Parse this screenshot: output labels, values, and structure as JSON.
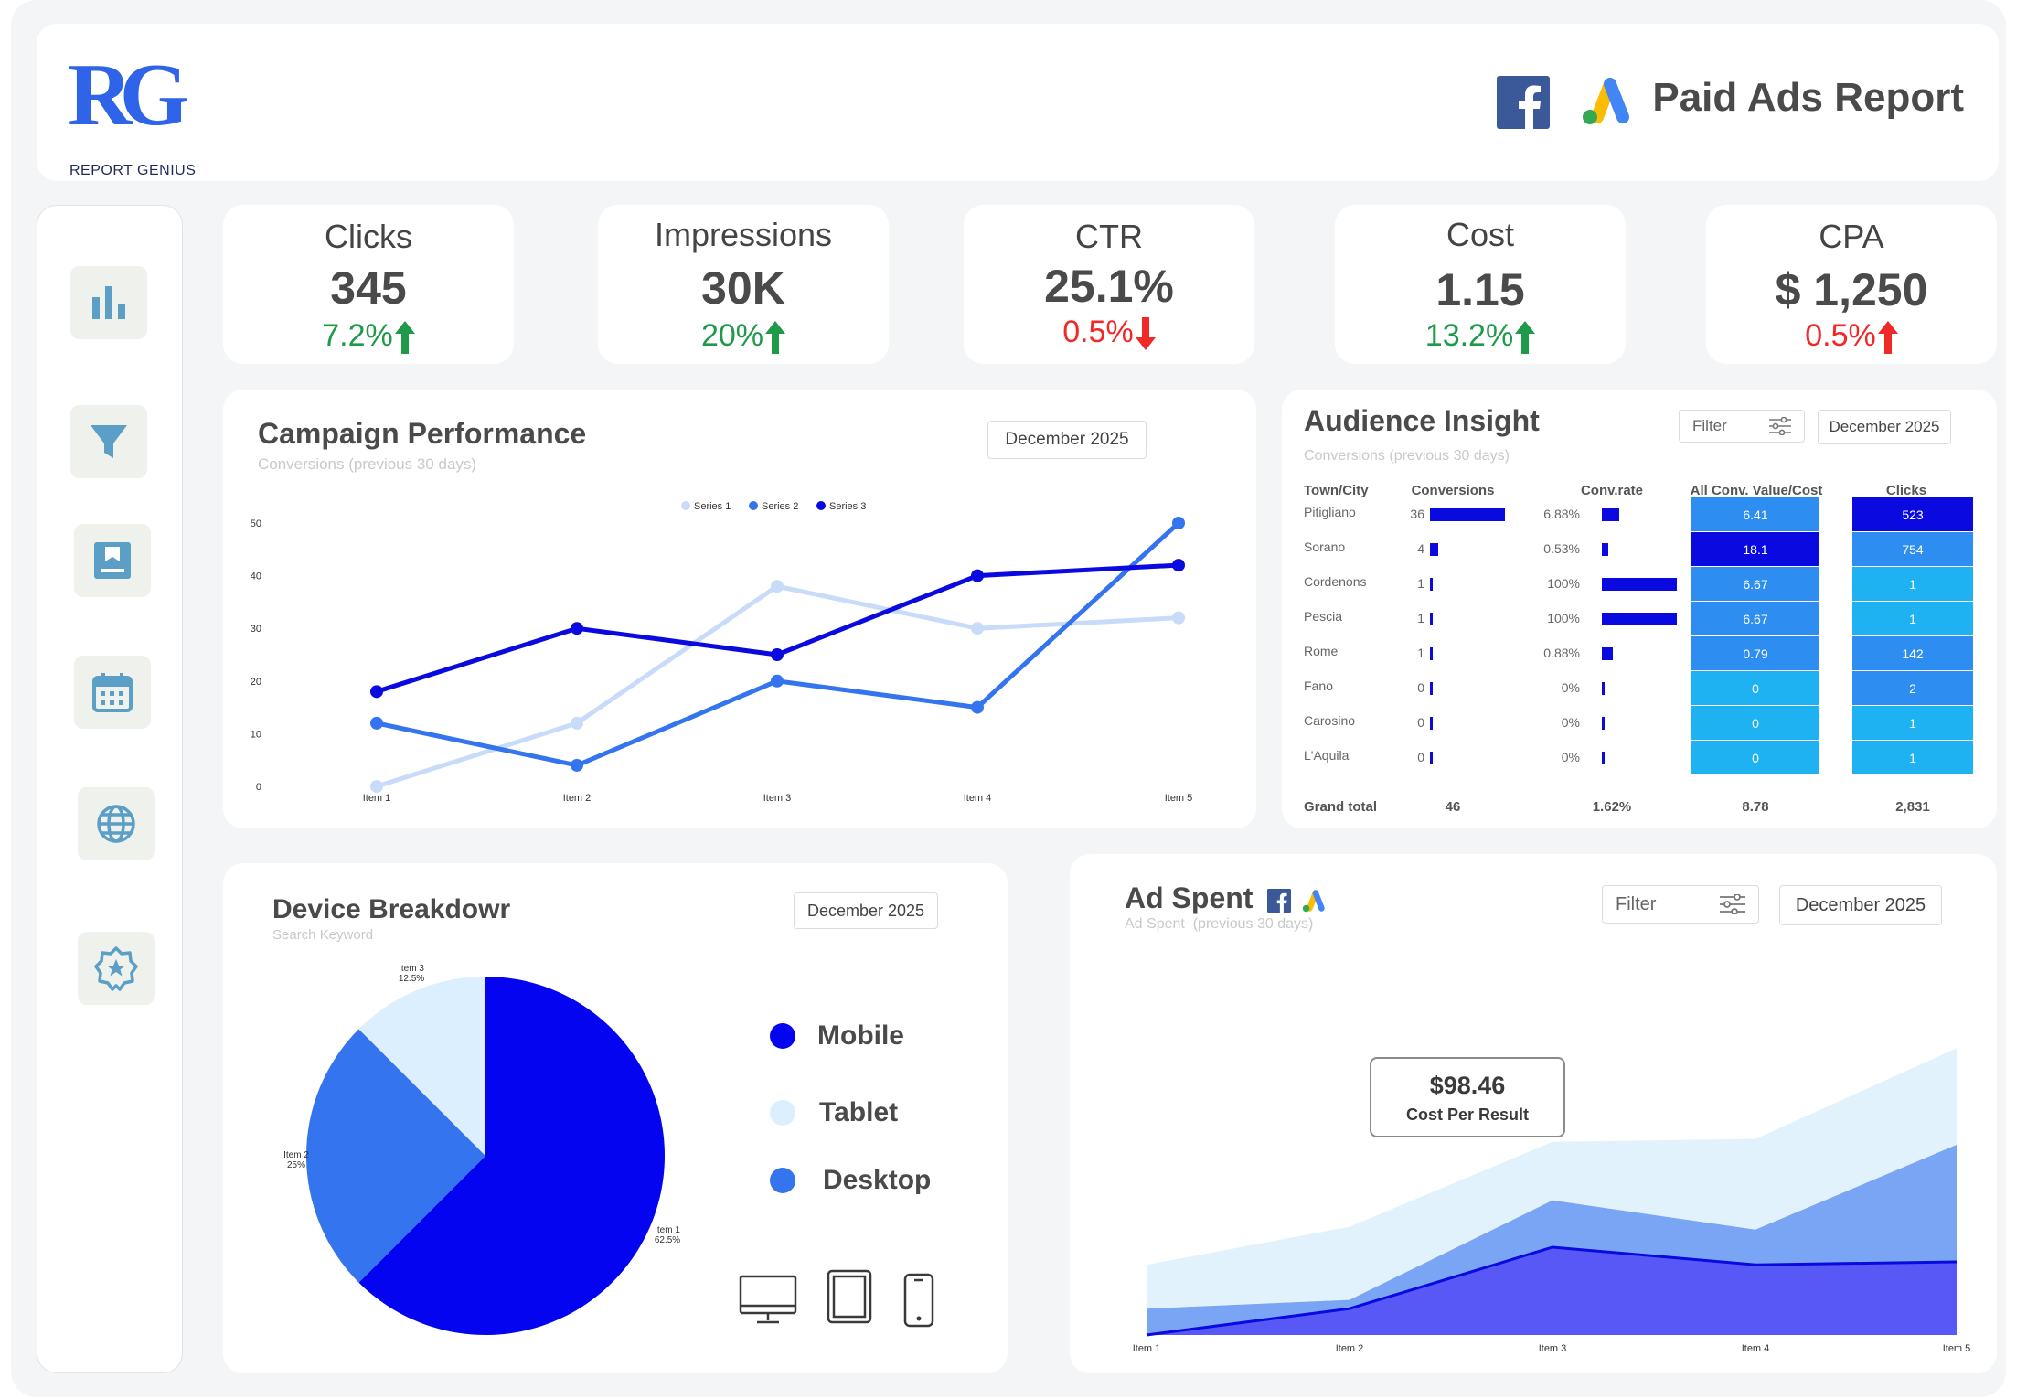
{
  "brand": {
    "logo_letters": "RG",
    "name": "REPORT GENIUS"
  },
  "header": {
    "title": "Paid Ads Report",
    "icons": [
      "facebook-icon",
      "google-ads-icon"
    ]
  },
  "sidebar": {
    "items": [
      {
        "name": "chart-bar-icon"
      },
      {
        "name": "filter-icon"
      },
      {
        "name": "bookmark-icon"
      },
      {
        "name": "calendar-icon"
      },
      {
        "name": "globe-icon"
      },
      {
        "name": "badge-star-icon"
      }
    ]
  },
  "kpis": [
    {
      "title": "Clicks",
      "value": "345",
      "delta": "7.2%",
      "direction": "up"
    },
    {
      "title": "Impressions",
      "value": "30K",
      "delta": "20%",
      "direction": "up"
    },
    {
      "title": "CTR",
      "value": "25.1%",
      "delta": "0.5%",
      "direction": "down"
    },
    {
      "title": "Cost",
      "value": "1.15",
      "delta": "13.2%",
      "direction": "up"
    },
    {
      "title": "CPA",
      "value": "$ 1,250",
      "delta": "0.5%",
      "direction": "up-red"
    }
  ],
  "colors": {
    "up": "#1f9a48",
    "down": "#f02828",
    "s1": "#c8dcfa",
    "s2": "#3474ef",
    "s3": "#0a0ae0"
  },
  "campaign": {
    "title": "Campaign Performance",
    "subtitle": "Conversions (previous 30 days)",
    "date": "December 2025",
    "chart_data": {
      "type": "line",
      "categories": [
        "Item 1",
        "Item 2",
        "Item 3",
        "Item 4",
        "Item 5"
      ],
      "yticks": [
        "0",
        "10",
        "20",
        "30",
        "40",
        "50"
      ],
      "ylim": [
        0,
        50
      ],
      "legend_position": "top",
      "series": [
        {
          "name": "Series 1",
          "values": [
            0,
            12,
            38,
            30,
            32
          ]
        },
        {
          "name": "Series 2",
          "values": [
            12,
            4,
            20,
            15,
            50
          ]
        },
        {
          "name": "Series 3",
          "values": [
            18,
            30,
            25,
            40,
            42
          ]
        }
      ]
    }
  },
  "audience": {
    "title": "Audience Insight",
    "subtitle": "Conversions (previous 30 days)",
    "filter_label": "Filter",
    "date": "December 2025",
    "headers": [
      "Town/City",
      "Conversions",
      "Conv.rate",
      "All Conv. Value/Cost",
      "Clicks"
    ],
    "rows": [
      {
        "city": "Pitigliano",
        "conv": "36",
        "conv_n": 36,
        "rate": "6.88%",
        "rate_n": 6.88,
        "value": "6.41",
        "clicks": "523"
      },
      {
        "city": "Sorano",
        "conv": "4",
        "conv_n": 4,
        "rate": "0.53%",
        "rate_n": 0.53,
        "value": "18.1",
        "clicks": "754"
      },
      {
        "city": "Cordenons",
        "conv": "1",
        "conv_n": 1,
        "rate": "100%",
        "rate_n": 100,
        "value": "6.67",
        "clicks": "1"
      },
      {
        "city": "Pescia",
        "conv": "1",
        "conv_n": 1,
        "rate": "100%",
        "rate_n": 100,
        "value": "6.67",
        "clicks": "1"
      },
      {
        "city": "Rome",
        "conv": "1",
        "conv_n": 1,
        "rate": "0.88%",
        "rate_n": 0.88,
        "value": "0.79",
        "clicks": "142"
      },
      {
        "city": "Fano",
        "conv": "0",
        "conv_n": 0,
        "rate": "0%",
        "rate_n": 0,
        "value": "0",
        "clicks": "2"
      },
      {
        "city": "Carosino",
        "conv": "0",
        "conv_n": 0,
        "rate": "0%",
        "rate_n": 0,
        "value": "0",
        "clicks": "1"
      },
      {
        "city": "L'Aquila",
        "conv": "0",
        "conv_n": 0,
        "rate": "0%",
        "rate_n": 0,
        "value": "0",
        "clicks": "1"
      }
    ],
    "total": {
      "label": "Grand total",
      "conv": "46",
      "rate": "1.62%",
      "value": "8.78",
      "clicks": "2,831"
    },
    "value_colors": [
      "#2e8df0",
      "#0a0ae0",
      "#2e8df0",
      "#2e8df0",
      "#2e8df0",
      "#1fb2f2",
      "#1fb2f2",
      "#1fb2f2"
    ],
    "click_colors": [
      "#0a0ae0",
      "#2e8df0",
      "#1fb2f2",
      "#1fb2f2",
      "#2e8df0",
      "#2e8df0",
      "#1fb2f2",
      "#1fb2f2"
    ]
  },
  "device": {
    "title": "Device Breakdowr",
    "subtitle": "Search Keyword",
    "date": "December 2025",
    "legend": [
      {
        "label": "Mobile",
        "color": "#0404f0"
      },
      {
        "label": "Tablet",
        "color": "#dcefff"
      },
      {
        "label": "Desktop",
        "color": "#3474ef"
      }
    ],
    "chart_data": {
      "type": "pie",
      "slices": [
        {
          "name": "Item 1",
          "value": 62.5,
          "label": "62.5%",
          "color": "#0404f0"
        },
        {
          "name": "Item 2",
          "value": 25,
          "label": "25%",
          "color": "#3474ef"
        },
        {
          "name": "Item 3",
          "value": 12.5,
          "label": "12.5%",
          "color": "#dcefff"
        }
      ]
    },
    "device_icons": [
      "desktop-icon",
      "tablet-icon",
      "phone-icon"
    ]
  },
  "adspent": {
    "title": "Ad Spent",
    "subtitle": "Ad Spent  (previous 30 days)",
    "filter_label": "Filter",
    "date": "December 2025",
    "callout_value": "$98.46",
    "callout_label": "Cost Per Result",
    "chart_data": {
      "type": "area",
      "categories": [
        "Item 1",
        "Item 2",
        "Item 3",
        "Item 4",
        "Item 5"
      ],
      "ylim": [
        0,
        100
      ],
      "stacked": false,
      "series": [
        {
          "values": [
            24,
            37,
            66,
            67,
            98
          ],
          "color": "#e2f2fc"
        },
        {
          "values": [
            9,
            12,
            46,
            36,
            65
          ],
          "color": "#7aa4f4"
        },
        {
          "values": [
            0,
            9,
            30,
            24,
            25
          ],
          "color": "#5858f6"
        }
      ]
    }
  }
}
